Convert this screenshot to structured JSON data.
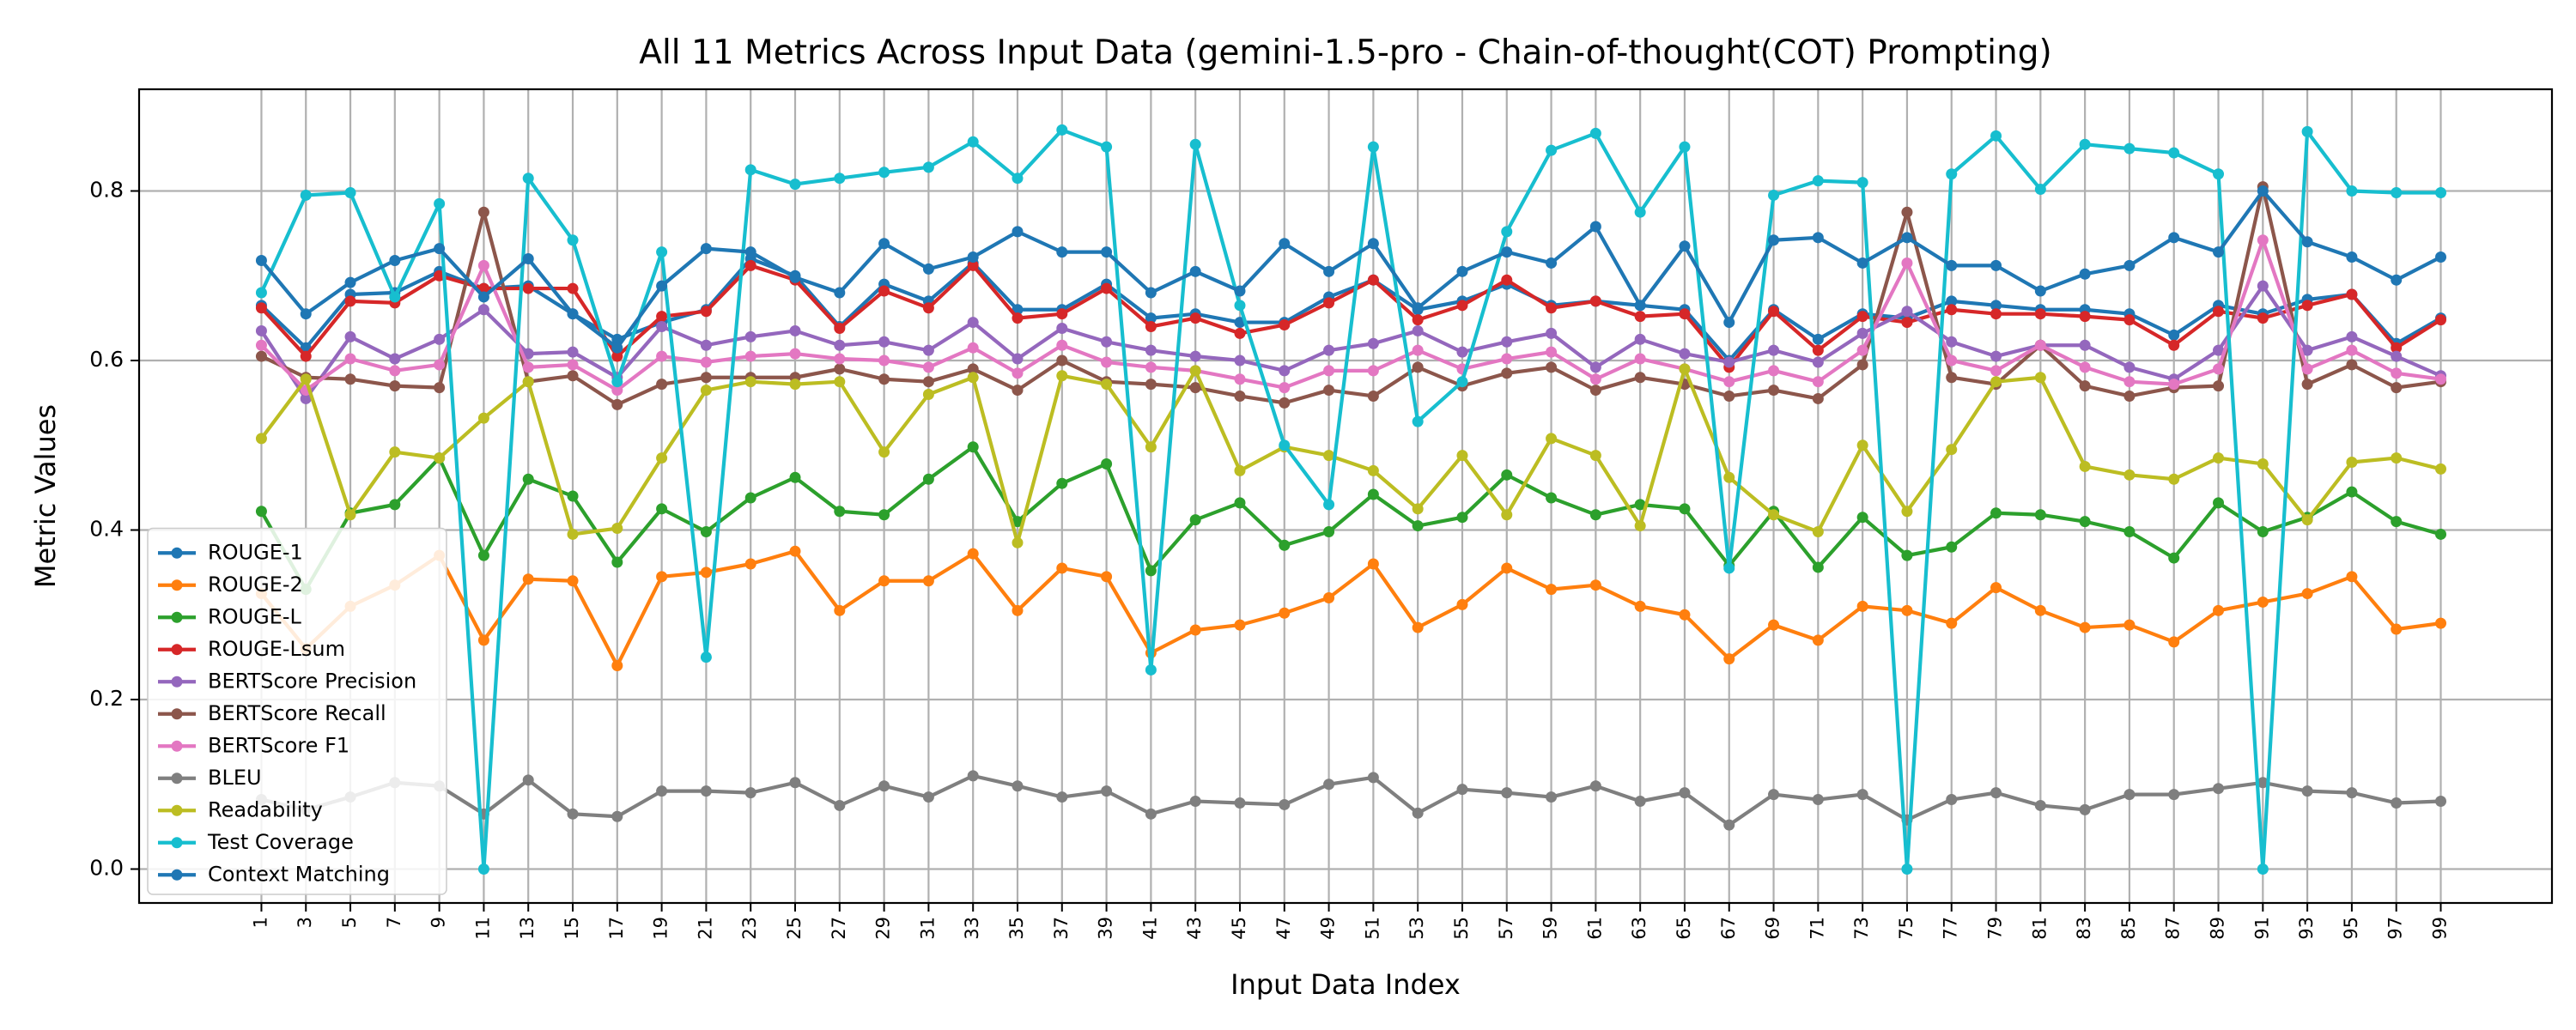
{
  "chart_data": {
    "type": "line",
    "title": "All 11 Metrics Across Input Data (gemini-1.5-pro - Chain-of-thought(COT) Prompting)",
    "xlabel": "Input Data Index",
    "ylabel": "Metric Values",
    "x": [
      1,
      3,
      5,
      7,
      9,
      11,
      13,
      15,
      17,
      19,
      21,
      23,
      25,
      27,
      29,
      31,
      33,
      35,
      37,
      39,
      41,
      43,
      45,
      47,
      49,
      51,
      53,
      55,
      57,
      59,
      61,
      63,
      65,
      67,
      69,
      71,
      73,
      75,
      77,
      79,
      81,
      83,
      85,
      87,
      89,
      91,
      93,
      95,
      97,
      99
    ],
    "xlim": [
      -4.5,
      104
    ],
    "ylim": [
      -0.04,
      0.92
    ],
    "yticks": [
      0.0,
      0.2,
      0.4,
      0.6,
      0.8
    ],
    "ytick_labels": [
      "0.0",
      "0.2",
      "0.4",
      "0.6",
      "0.8"
    ],
    "grid": true,
    "legend_position": "lower-left",
    "series": [
      {
        "name": "ROUGE-1",
        "color": "#1f77b4",
        "values": [
          0.665,
          0.615,
          0.678,
          0.68,
          0.705,
          0.685,
          0.688,
          0.655,
          0.625,
          0.645,
          0.66,
          0.72,
          0.7,
          0.64,
          0.69,
          0.67,
          0.715,
          0.66,
          0.66,
          0.69,
          0.65,
          0.655,
          0.645,
          0.645,
          0.675,
          0.695,
          0.66,
          0.67,
          0.69,
          0.665,
          0.67,
          0.665,
          0.66,
          0.6,
          0.66,
          0.625,
          0.655,
          0.65,
          0.67,
          0.665,
          0.66,
          0.66,
          0.655,
          0.63,
          0.665,
          0.655,
          0.672,
          0.678,
          0.62,
          0.65
        ]
      },
      {
        "name": "ROUGE-2",
        "color": "#ff7f0e",
        "values": [
          0.325,
          0.26,
          0.31,
          0.335,
          0.37,
          0.27,
          0.342,
          0.34,
          0.24,
          0.345,
          0.35,
          0.36,
          0.375,
          0.305,
          0.34,
          0.34,
          0.372,
          0.305,
          0.355,
          0.345,
          0.255,
          0.282,
          0.288,
          0.302,
          0.32,
          0.36,
          0.285,
          0.312,
          0.355,
          0.33,
          0.335,
          0.31,
          0.3,
          0.248,
          0.288,
          0.27,
          0.31,
          0.305,
          0.29,
          0.332,
          0.305,
          0.285,
          0.288,
          0.268,
          0.305,
          0.315,
          0.325,
          0.345,
          0.283,
          0.29
        ]
      },
      {
        "name": "ROUGE-L",
        "color": "#2ca02c",
        "values": [
          0.422,
          0.33,
          0.42,
          0.43,
          0.485,
          0.37,
          0.46,
          0.44,
          0.362,
          0.425,
          0.398,
          0.438,
          0.462,
          0.422,
          0.418,
          0.46,
          0.498,
          0.41,
          0.455,
          0.478,
          0.352,
          0.412,
          0.432,
          0.382,
          0.398,
          0.442,
          0.405,
          0.415,
          0.465,
          0.438,
          0.418,
          0.43,
          0.425,
          0.358,
          0.422,
          0.356,
          0.415,
          0.37,
          0.38,
          0.42,
          0.418,
          0.41,
          0.398,
          0.367,
          0.432,
          0.398,
          0.415,
          0.445,
          0.41,
          0.395
        ]
      },
      {
        "name": "ROUGE-Lsum",
        "color": "#d62728",
        "values": [
          0.662,
          0.605,
          0.67,
          0.668,
          0.7,
          0.685,
          0.685,
          0.685,
          0.605,
          0.652,
          0.658,
          0.712,
          0.695,
          0.638,
          0.682,
          0.662,
          0.712,
          0.65,
          0.655,
          0.685,
          0.64,
          0.65,
          0.632,
          0.642,
          0.668,
          0.695,
          0.648,
          0.665,
          0.695,
          0.662,
          0.67,
          0.652,
          0.655,
          0.592,
          0.658,
          0.612,
          0.652,
          0.645,
          0.66,
          0.655,
          0.655,
          0.652,
          0.648,
          0.618,
          0.658,
          0.65,
          0.665,
          0.678,
          0.615,
          0.648
        ]
      },
      {
        "name": "BERTScore Precision",
        "color": "#9467bd",
        "values": [
          0.635,
          0.555,
          0.628,
          0.602,
          0.625,
          0.66,
          0.608,
          0.61,
          0.58,
          0.64,
          0.618,
          0.628,
          0.635,
          0.618,
          0.622,
          0.612,
          0.645,
          0.602,
          0.638,
          0.622,
          0.612,
          0.605,
          0.6,
          0.588,
          0.612,
          0.62,
          0.635,
          0.61,
          0.622,
          0.632,
          0.592,
          0.625,
          0.608,
          0.598,
          0.612,
          0.598,
          0.632,
          0.658,
          0.622,
          0.605,
          0.618,
          0.618,
          0.592,
          0.578,
          0.612,
          0.688,
          0.612,
          0.628,
          0.605,
          0.582
        ]
      },
      {
        "name": "BERTScore Recall",
        "color": "#8c564b",
        "values": [
          0.605,
          0.58,
          0.578,
          0.57,
          0.568,
          0.775,
          0.575,
          0.582,
          0.548,
          0.572,
          0.58,
          0.58,
          0.58,
          0.59,
          0.578,
          0.575,
          0.59,
          0.565,
          0.6,
          0.575,
          0.572,
          0.568,
          0.558,
          0.55,
          0.565,
          0.558,
          0.592,
          0.57,
          0.585,
          0.592,
          0.565,
          0.58,
          0.572,
          0.558,
          0.565,
          0.555,
          0.595,
          0.775,
          0.58,
          0.572,
          0.618,
          0.57,
          0.558,
          0.568,
          0.57,
          0.805,
          0.572,
          0.595,
          0.568,
          0.575
        ]
      },
      {
        "name": "BERTScore F1",
        "color": "#e377c2",
        "values": [
          0.618,
          0.565,
          0.602,
          0.588,
          0.595,
          0.712,
          0.592,
          0.595,
          0.565,
          0.605,
          0.598,
          0.605,
          0.608,
          0.602,
          0.6,
          0.592,
          0.615,
          0.585,
          0.618,
          0.598,
          0.592,
          0.588,
          0.578,
          0.568,
          0.588,
          0.588,
          0.612,
          0.59,
          0.602,
          0.61,
          0.578,
          0.602,
          0.59,
          0.575,
          0.588,
          0.575,
          0.612,
          0.715,
          0.6,
          0.588,
          0.618,
          0.592,
          0.575,
          0.572,
          0.59,
          0.742,
          0.59,
          0.612,
          0.585,
          0.578
        ]
      },
      {
        "name": "BLEU",
        "color": "#7f7f7f",
        "values": [
          0.082,
          0.07,
          0.085,
          0.102,
          0.098,
          0.065,
          0.105,
          0.065,
          0.062,
          0.092,
          0.092,
          0.09,
          0.102,
          0.075,
          0.098,
          0.085,
          0.11,
          0.098,
          0.085,
          0.092,
          0.065,
          0.08,
          0.078,
          0.076,
          0.1,
          0.108,
          0.066,
          0.094,
          0.09,
          0.085,
          0.098,
          0.08,
          0.09,
          0.052,
          0.088,
          0.082,
          0.088,
          0.058,
          0.082,
          0.09,
          0.075,
          0.07,
          0.088,
          0.088,
          0.095,
          0.102,
          0.092,
          0.09,
          0.078,
          0.08
        ]
      },
      {
        "name": "Readability",
        "color": "#bcbd22",
        "values": [
          0.508,
          0.578,
          0.418,
          0.492,
          0.485,
          0.532,
          0.575,
          0.395,
          0.402,
          0.485,
          0.565,
          0.575,
          0.572,
          0.575,
          0.492,
          0.56,
          0.58,
          0.385,
          0.582,
          0.572,
          0.498,
          0.588,
          0.47,
          0.498,
          0.488,
          0.47,
          0.425,
          0.488,
          0.418,
          0.508,
          0.488,
          0.405,
          0.59,
          0.462,
          0.418,
          0.398,
          0.5,
          0.422,
          0.495,
          0.575,
          0.58,
          0.475,
          0.465,
          0.46,
          0.485,
          0.478,
          0.412,
          0.48,
          0.485,
          0.472
        ]
      },
      {
        "name": "Test Coverage",
        "color": "#17becf",
        "values": [
          0.68,
          0.795,
          0.798,
          0.675,
          0.785,
          0.0,
          0.815,
          0.742,
          0.575,
          0.728,
          0.25,
          0.825,
          0.808,
          0.815,
          0.822,
          0.828,
          0.858,
          0.815,
          0.872,
          0.852,
          0.235,
          0.855,
          0.665,
          0.5,
          0.43,
          0.852,
          0.528,
          0.575,
          0.752,
          0.848,
          0.868,
          0.775,
          0.852,
          0.355,
          0.795,
          0.812,
          0.81,
          0.0,
          0.82,
          0.865,
          0.802,
          0.855,
          0.85,
          0.845,
          0.82,
          0.0,
          0.87,
          0.8,
          0.798,
          0.798
        ]
      },
      {
        "name": "Context Matching",
        "color": "#1f77b4",
        "values": [
          0.718,
          0.655,
          0.692,
          0.718,
          0.732,
          0.675,
          0.72,
          0.655,
          0.615,
          0.688,
          0.732,
          0.728,
          0.698,
          0.68,
          0.738,
          0.708,
          0.722,
          0.752,
          0.728,
          0.728,
          0.68,
          0.705,
          0.682,
          0.738,
          0.705,
          0.738,
          0.662,
          0.705,
          0.728,
          0.715,
          0.758,
          0.665,
          0.735,
          0.645,
          0.742,
          0.745,
          0.715,
          0.745,
          0.712,
          0.712,
          0.682,
          0.702,
          0.712,
          0.745,
          0.728,
          0.8,
          0.74,
          0.722,
          0.695,
          0.722
        ]
      }
    ]
  }
}
